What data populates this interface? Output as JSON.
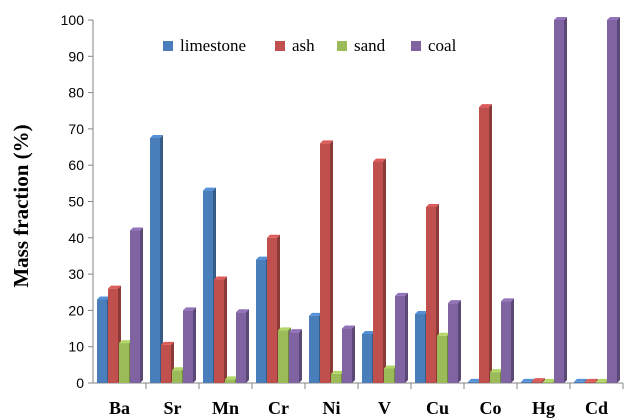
{
  "chart_data": {
    "type": "bar",
    "categories": [
      "Ba",
      "Sr",
      "Mn",
      "Cr",
      "Ni",
      "V",
      "Cu",
      "Co",
      "Hg",
      "Cd"
    ],
    "series": [
      {
        "name": "limestone",
        "color": "#4a7ebb",
        "values": [
          23,
          67.5,
          53,
          34,
          18.5,
          13.5,
          19,
          0.3,
          0.3,
          0.3
        ]
      },
      {
        "name": "ash",
        "color": "#c0504d",
        "values": [
          26,
          10.5,
          28.5,
          40,
          66,
          61,
          48.5,
          76,
          0.5,
          0.3
        ]
      },
      {
        "name": "sand",
        "color": "#9bbb59",
        "values": [
          11,
          3.5,
          1,
          14.5,
          2.5,
          4,
          13,
          3,
          0.3,
          0.3
        ]
      },
      {
        "name": "coal",
        "color": "#8064a2",
        "values": [
          42,
          20,
          19.5,
          14,
          15,
          24,
          22,
          22.5,
          100,
          100
        ]
      }
    ],
    "ylabel": "Mass fraction  (%)",
    "xlabel": "",
    "ylim": [
      0,
      100
    ],
    "yticks": [
      0,
      10,
      20,
      30,
      40,
      50,
      60,
      70,
      80,
      90,
      100
    ],
    "grid": false,
    "legend_position": "top"
  }
}
